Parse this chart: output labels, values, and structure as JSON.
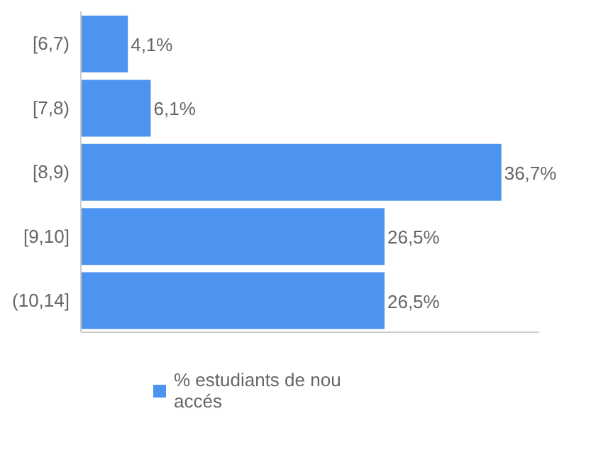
{
  "chart_data": {
    "type": "bar",
    "orientation": "horizontal",
    "categories": [
      "[6,7)",
      "[7,8)",
      "[8,9)",
      "[9,10]",
      "(10,14]"
    ],
    "series": [
      {
        "name": "% estudiants de nou accés",
        "color": "#4d94f0",
        "values": [
          4.1,
          6.1,
          36.7,
          26.5,
          26.5
        ],
        "value_labels": [
          "4,1%",
          "6,1%",
          "36,7%",
          "26,5%",
          "26,5%"
        ]
      }
    ],
    "tick_labels": "y",
    "legend": "bottom"
  }
}
